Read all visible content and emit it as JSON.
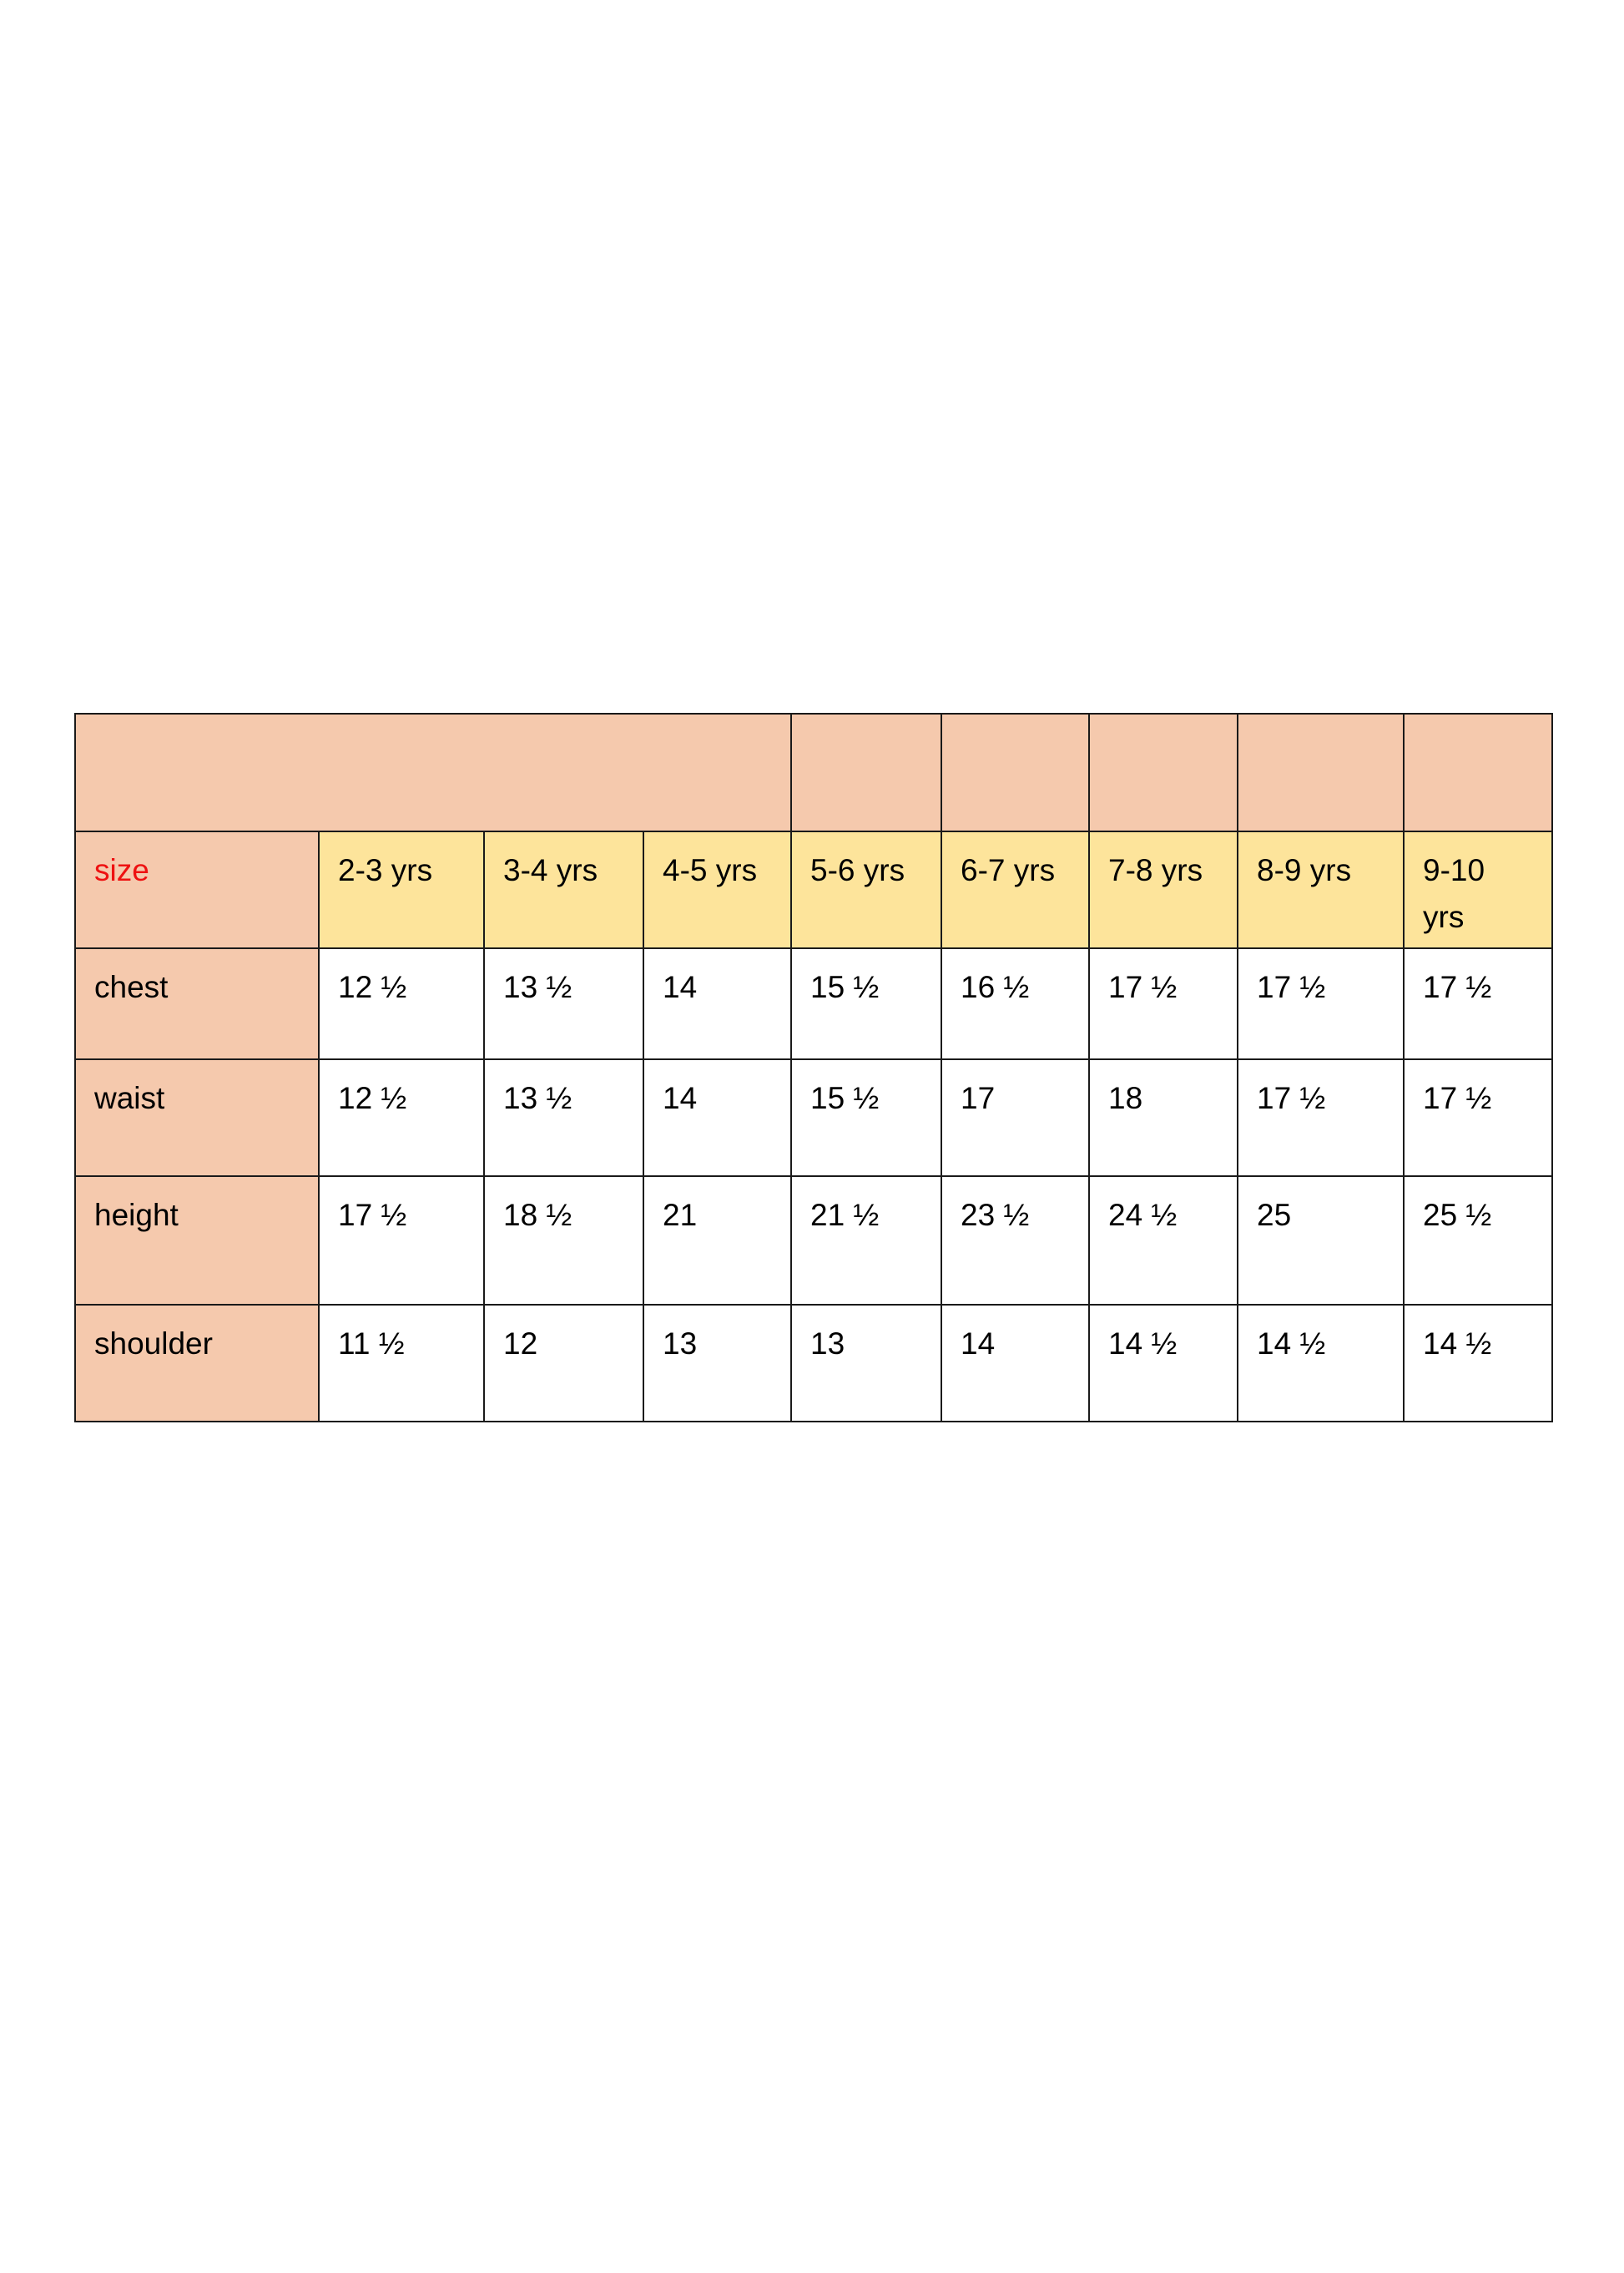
{
  "colors": {
    "header_bg": "#f5c9ad",
    "size_row_bg": "#fde49b",
    "size_label": "#ee1111",
    "border": "#1a1a1a"
  },
  "table": {
    "size_label": "size",
    "sizes": [
      "2-3 yrs",
      "3-4 yrs",
      "4-5 yrs",
      "5-6 yrs",
      "6-7 yrs",
      "7-8 yrs",
      "8-9 yrs",
      "9-10 yrs"
    ],
    "rows": [
      {
        "label": "chest",
        "values": [
          "12 ½",
          "13 ½",
          "14",
          "15 ½",
          "16 ½",
          "17 ½",
          "17 ½",
          "17 ½"
        ]
      },
      {
        "label": "waist",
        "values": [
          "12 ½",
          "13 ½",
          "14",
          "15 ½",
          "17",
          "18",
          "17 ½",
          "17 ½"
        ]
      },
      {
        "label": "height",
        "values": [
          "17 ½",
          "18 ½",
          "21",
          "21 ½",
          "23 ½",
          "24 ½",
          "25",
          "25 ½"
        ]
      },
      {
        "label": "shoulder",
        "values": [
          "11 ½",
          "12",
          "13",
          "13",
          "14",
          "14 ½",
          "14 ½",
          "14 ½"
        ]
      }
    ]
  }
}
